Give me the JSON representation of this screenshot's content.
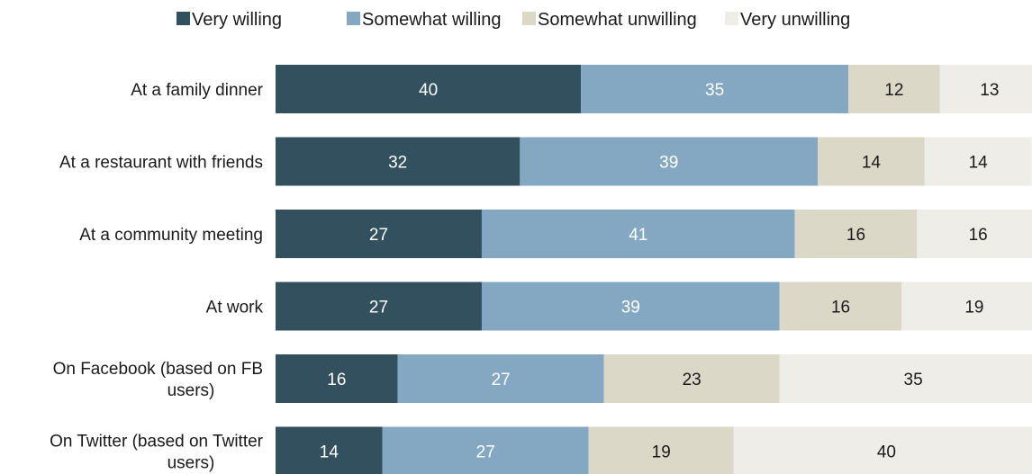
{
  "chart_data": {
    "type": "bar",
    "orientation": "horizontal",
    "stacked": true,
    "title": "",
    "xlabel": "",
    "ylabel": "",
    "xlim": [
      0,
      100
    ],
    "grid": false,
    "legend_position": "top",
    "categories": [
      [
        "At a family dinner"
      ],
      [
        "At a restaurant with friends"
      ],
      [
        "At a community meeting"
      ],
      [
        "At work"
      ],
      [
        "On Facebook (based on FB",
        "users)"
      ],
      [
        "On Twitter (based on Twitter",
        "users)"
      ]
    ],
    "series": [
      {
        "name": "Very willing",
        "color": "#33505f",
        "label_color": "#ffffff",
        "values": [
          40,
          32,
          27,
          27,
          16,
          14
        ]
      },
      {
        "name": "Somewhat willing",
        "color": "#84a8c2",
        "label_color": "#ffffff",
        "values": [
          35,
          39,
          41,
          39,
          27,
          27
        ]
      },
      {
        "name": "Somewhat unwilling",
        "color": "#dcd8c8",
        "label_color": "#1a1a1a",
        "values": [
          12,
          14,
          16,
          16,
          23,
          19
        ]
      },
      {
        "name": "Very unwilling",
        "color": "#efede7",
        "label_color": "#1a1a1a",
        "values": [
          13,
          14,
          16,
          19,
          35,
          40
        ]
      }
    ]
  }
}
